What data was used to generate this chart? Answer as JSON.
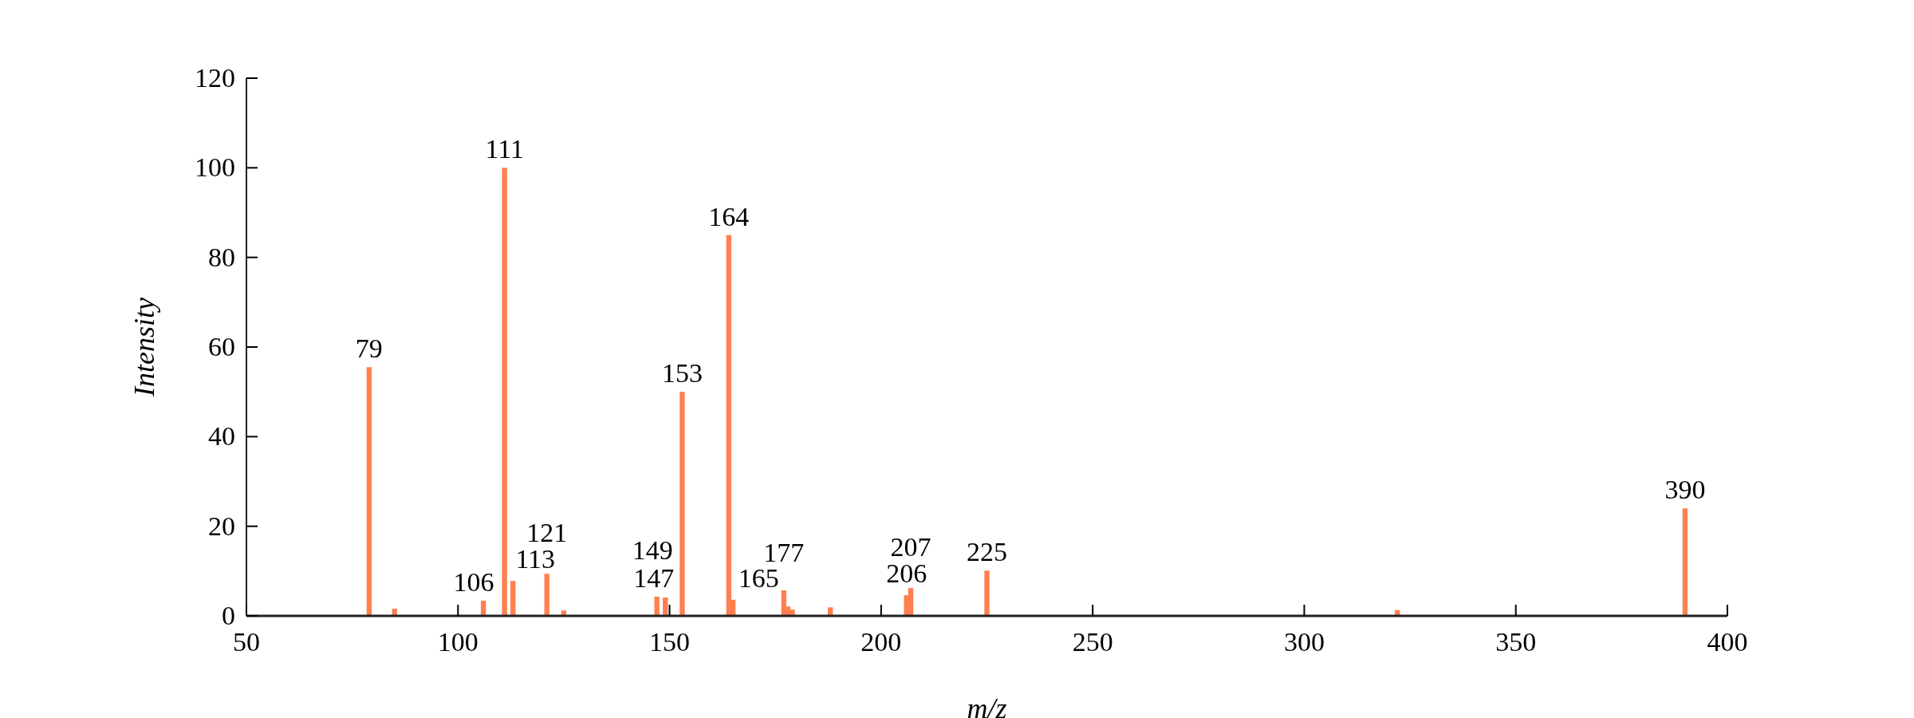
{
  "chart_data": {
    "type": "bar",
    "xlabel": "m/z",
    "ylabel": "Intensity",
    "x": [
      79,
      85,
      106,
      111,
      113,
      121,
      125,
      147,
      149,
      153,
      164,
      165,
      177,
      178,
      179,
      188,
      206,
      207,
      225,
      322,
      390
    ],
    "values": [
      55.5,
      1.6,
      3.4,
      100,
      7.8,
      9.4,
      1.2,
      4.3,
      4.1,
      50,
      85,
      3.6,
      5.7,
      2.1,
      1.4,
      1.9,
      4.6,
      6.2,
      10.1,
      1.3,
      24
    ],
    "color": "#ff7f50",
    "xlim": [
      50,
      400
    ],
    "xticks": [
      50,
      100,
      150,
      200,
      250,
      300,
      350,
      400
    ],
    "ylim": [
      0,
      120
    ],
    "yticks": [
      0,
      20,
      40,
      60,
      80,
      100,
      120
    ],
    "grid": false,
    "annotations": [
      {
        "text": "79",
        "x": 79,
        "y": 55.5
      },
      {
        "text": "106",
        "x": 106,
        "y": 3.4
      },
      {
        "text": "111",
        "x": 111,
        "y": 100
      },
      {
        "text": "113",
        "x": 113,
        "y": 7.8
      },
      {
        "text": "121",
        "x": 121,
        "y": 9.4
      },
      {
        "text": "147",
        "x": 147,
        "y": 4.3
      },
      {
        "text": "149",
        "x": 149,
        "y": 4.1
      },
      {
        "text": "153",
        "x": 153,
        "y": 50
      },
      {
        "text": "164",
        "x": 164,
        "y": 85
      },
      {
        "text": "165",
        "x": 165,
        "y": 3.6
      },
      {
        "text": "177",
        "x": 177,
        "y": 5.7
      },
      {
        "text": "206",
        "x": 206,
        "y": 4.6
      },
      {
        "text": "207",
        "x": 207,
        "y": 6.2
      },
      {
        "text": "225",
        "x": 225,
        "y": 10.1
      },
      {
        "text": "390",
        "x": 390,
        "y": 24
      }
    ]
  }
}
